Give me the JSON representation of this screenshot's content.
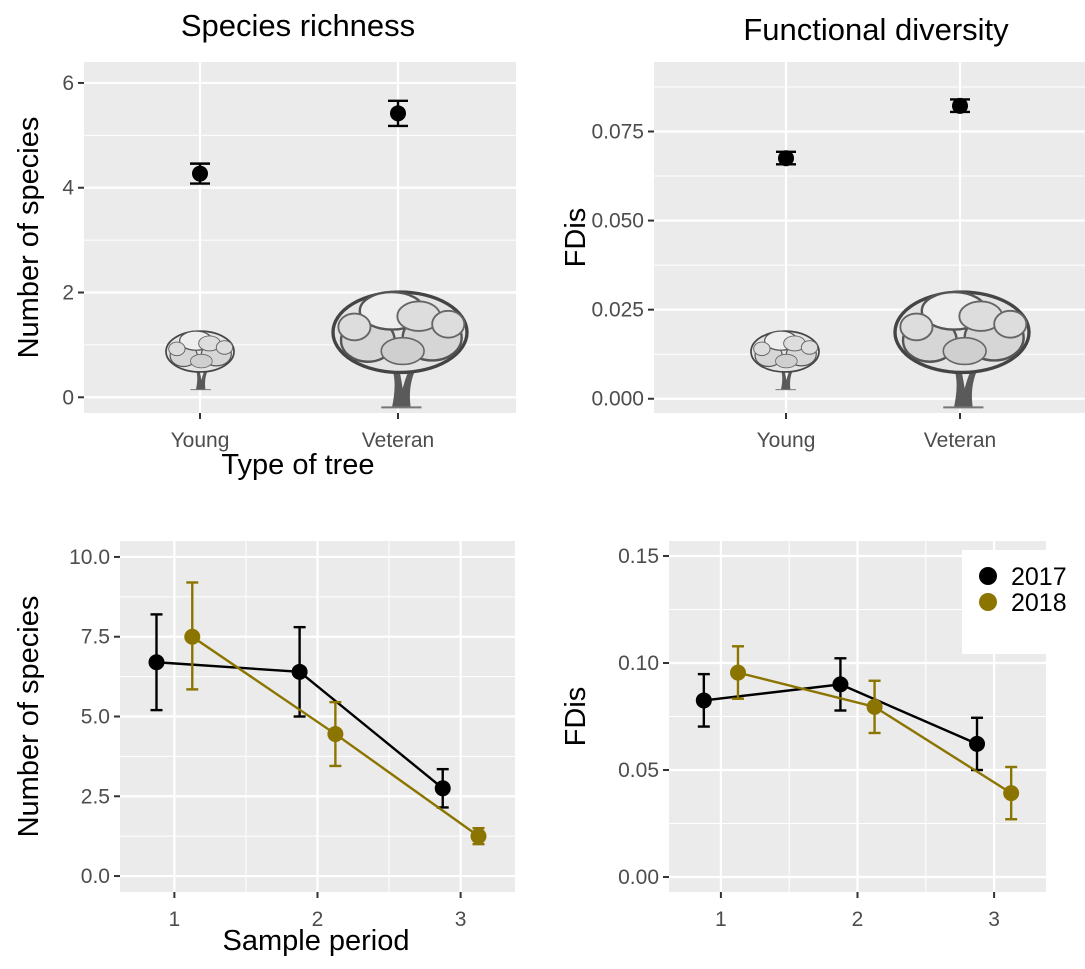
{
  "figure": {
    "panel_background": "#ebebeb",
    "grid_color": "#ffffff",
    "series_colors": {
      "2017": "#000000",
      "2018": "#8b7500"
    }
  },
  "chart_data": [
    {
      "id": "species-richness",
      "type": "scatter",
      "title": "Species richness",
      "xlabel": "Type of tree",
      "ylabel": "Number of species",
      "categories": [
        "Young",
        "Veteran"
      ],
      "ylim": [
        -0.3,
        6.4
      ],
      "yticks": [
        0,
        2,
        4,
        6
      ],
      "ytick_labels": [
        "0",
        "2",
        "4",
        "6"
      ],
      "grid": true,
      "illustrations": [
        "young-tree-illustration",
        "veteran-tree-illustration"
      ],
      "series": [
        {
          "values": [
            4.27,
            5.42
          ],
          "lower": [
            4.08,
            5.18
          ],
          "upper": [
            4.46,
            5.66
          ]
        }
      ]
    },
    {
      "id": "functional-diversity",
      "type": "scatter",
      "title": "Functional diversity",
      "xlabel": "",
      "ylabel": "FDis",
      "categories": [
        "Young",
        "Veteran"
      ],
      "ylim": [
        -0.004,
        0.0945
      ],
      "yticks": [
        0,
        0.025,
        0.05,
        0.075
      ],
      "ytick_labels": [
        "0.000",
        "0.025",
        "0.050",
        "0.075"
      ],
      "grid": true,
      "illustrations": [
        "young-tree-illustration",
        "veteran-tree-illustration"
      ],
      "series": [
        {
          "values": [
            0.0675,
            0.0822
          ],
          "lower": [
            0.0658,
            0.0805
          ],
          "upper": [
            0.0693,
            0.084
          ]
        }
      ]
    },
    {
      "id": "species-by-period",
      "type": "line",
      "title": "",
      "xlabel": "Sample period",
      "ylabel": "Number of species",
      "x": [
        1,
        2,
        3
      ],
      "xlim": [
        0.62,
        3.38
      ],
      "ylim": [
        -0.5,
        10.5
      ],
      "yticks": [
        0,
        2.5,
        5,
        7.5,
        10
      ],
      "ytick_labels": [
        "0.0",
        "2.5",
        "5.0",
        "7.5",
        "10.0"
      ],
      "grid": true,
      "dodge": 0.125,
      "legend": null,
      "series": [
        {
          "key": "2017",
          "values": [
            6.7,
            6.4,
            2.75
          ],
          "lower": [
            5.2,
            5.0,
            2.15
          ],
          "upper": [
            8.2,
            7.8,
            3.35
          ]
        },
        {
          "key": "2018",
          "values": [
            7.5,
            4.45,
            1.25
          ],
          "lower": [
            5.85,
            3.45,
            1.0
          ],
          "upper": [
            9.2,
            5.45,
            1.5
          ]
        }
      ]
    },
    {
      "id": "fdis-by-period",
      "type": "line",
      "title": "",
      "xlabel": "",
      "ylabel": "FDis",
      "x": [
        1,
        2,
        3
      ],
      "xlim": [
        0.62,
        3.38
      ],
      "ylim": [
        -0.007,
        0.157
      ],
      "yticks": [
        0,
        0.05,
        0.1,
        0.15
      ],
      "ytick_labels": [
        "0.00",
        "0.05",
        "0.10",
        "0.15"
      ],
      "grid": true,
      "dodge": 0.125,
      "legend": {
        "position": "top-right",
        "entries": [
          "2017",
          "2018"
        ]
      },
      "series": [
        {
          "key": "2017",
          "name": "2017",
          "values": [
            0.0825,
            0.09,
            0.0622
          ],
          "lower": [
            0.0703,
            0.0778,
            0.05
          ],
          "upper": [
            0.0948,
            0.1022,
            0.0744
          ]
        },
        {
          "key": "2018",
          "name": "2018",
          "values": [
            0.0955,
            0.0795,
            0.0392
          ],
          "lower": [
            0.0833,
            0.0673,
            0.027
          ],
          "upper": [
            0.1078,
            0.0917,
            0.0514
          ]
        }
      ]
    }
  ]
}
